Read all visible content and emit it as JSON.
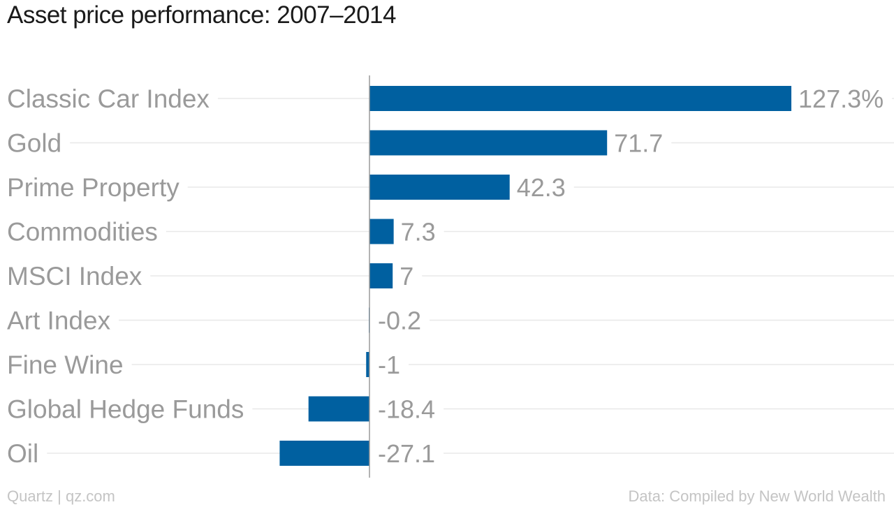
{
  "chart_data": {
    "type": "bar",
    "orientation": "horizontal",
    "title": "Asset price performance: 2007–2014",
    "categories": [
      "Classic Car Index",
      "Gold",
      "Prime Property",
      "Commodities",
      "MSCI Index",
      "Art Index",
      "Fine Wine",
      "Global Hedge Funds",
      "Oil"
    ],
    "values": [
      127.3,
      71.7,
      42.3,
      7.3,
      7,
      -0.2,
      -1,
      -18.4,
      -27.1
    ],
    "value_labels": [
      "127.3%",
      "71.7",
      "42.3",
      "7.3",
      "7",
      "-0.2",
      "-1",
      "-18.4",
      "-27.1"
    ],
    "bar_color": "#0060a0",
    "grid": true,
    "legend": "none"
  },
  "footer": {
    "source_left": "Quartz | qz.com",
    "source_right": "Data: Compiled by New World Wealth"
  }
}
